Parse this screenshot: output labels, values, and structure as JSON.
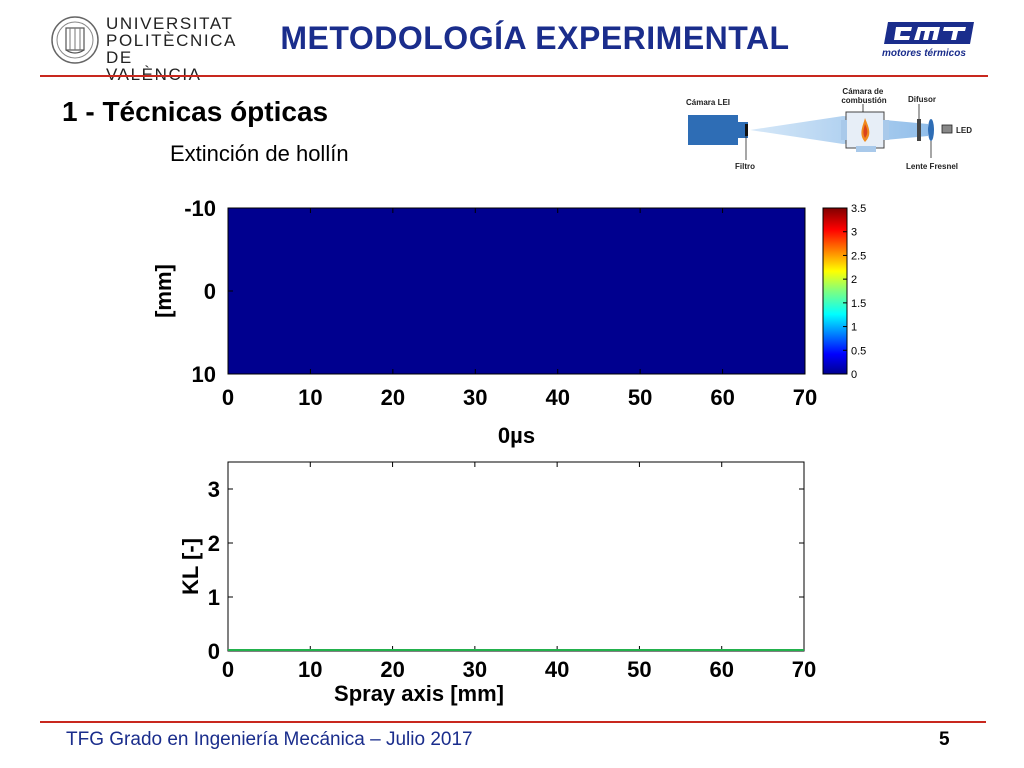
{
  "header": {
    "university": [
      "UNIVERSITAT",
      "POLITÈCNICA",
      "DE VALÈNCIA"
    ],
    "title": "METODOLOGÍA EXPERIMENTAL",
    "cmt_caption": "motores térmicos"
  },
  "section": {
    "heading": "1 - Técnicas ópticas",
    "subheading": "Extinción de hollín"
  },
  "setup_diagram": {
    "labels": {
      "camera": "Cámara LEI",
      "chamber": "Cámara de combustión",
      "diffuser": "Difusor",
      "led": "LED",
      "filter": "Filtro",
      "lens": "Lente Fresnel"
    }
  },
  "chart_data": [
    {
      "type": "heatmap",
      "title": "0µs",
      "xlabel": "0µs",
      "ylabel": "[mm]",
      "xlim": [
        0,
        70
      ],
      "ylim": [
        -10,
        10
      ],
      "xticks": [
        "0",
        "10",
        "20",
        "30",
        "40",
        "50",
        "60",
        "70"
      ],
      "yticks": [
        "-10",
        "0",
        "10"
      ],
      "values": "uniform 0 over the whole field",
      "colorbar": {
        "range": [
          0,
          3.5
        ],
        "ticks": [
          "3.5",
          "3",
          "2.5",
          "2",
          "1.5",
          "1",
          "0.5",
          "0"
        ],
        "colormap": "jet"
      }
    },
    {
      "type": "line",
      "xlabel": "Spray axis [mm]",
      "ylabel": "KL [-]",
      "xlim": [
        0,
        70
      ],
      "ylim": [
        0,
        3.5
      ],
      "xticks": [
        "0",
        "10",
        "20",
        "30",
        "40",
        "50",
        "60",
        "70"
      ],
      "yticks": [
        "0",
        "1",
        "2",
        "3"
      ],
      "series": [
        {
          "x": [
            0,
            10,
            20,
            30,
            40,
            50,
            60,
            70
          ],
          "y": [
            0,
            0,
            0,
            0,
            0,
            0,
            0,
            0
          ],
          "color": "#22b14c"
        }
      ]
    }
  ],
  "footer": {
    "text": "TFG Grado en Ingeniería Mecánica – Julio 2017",
    "page": "5"
  }
}
